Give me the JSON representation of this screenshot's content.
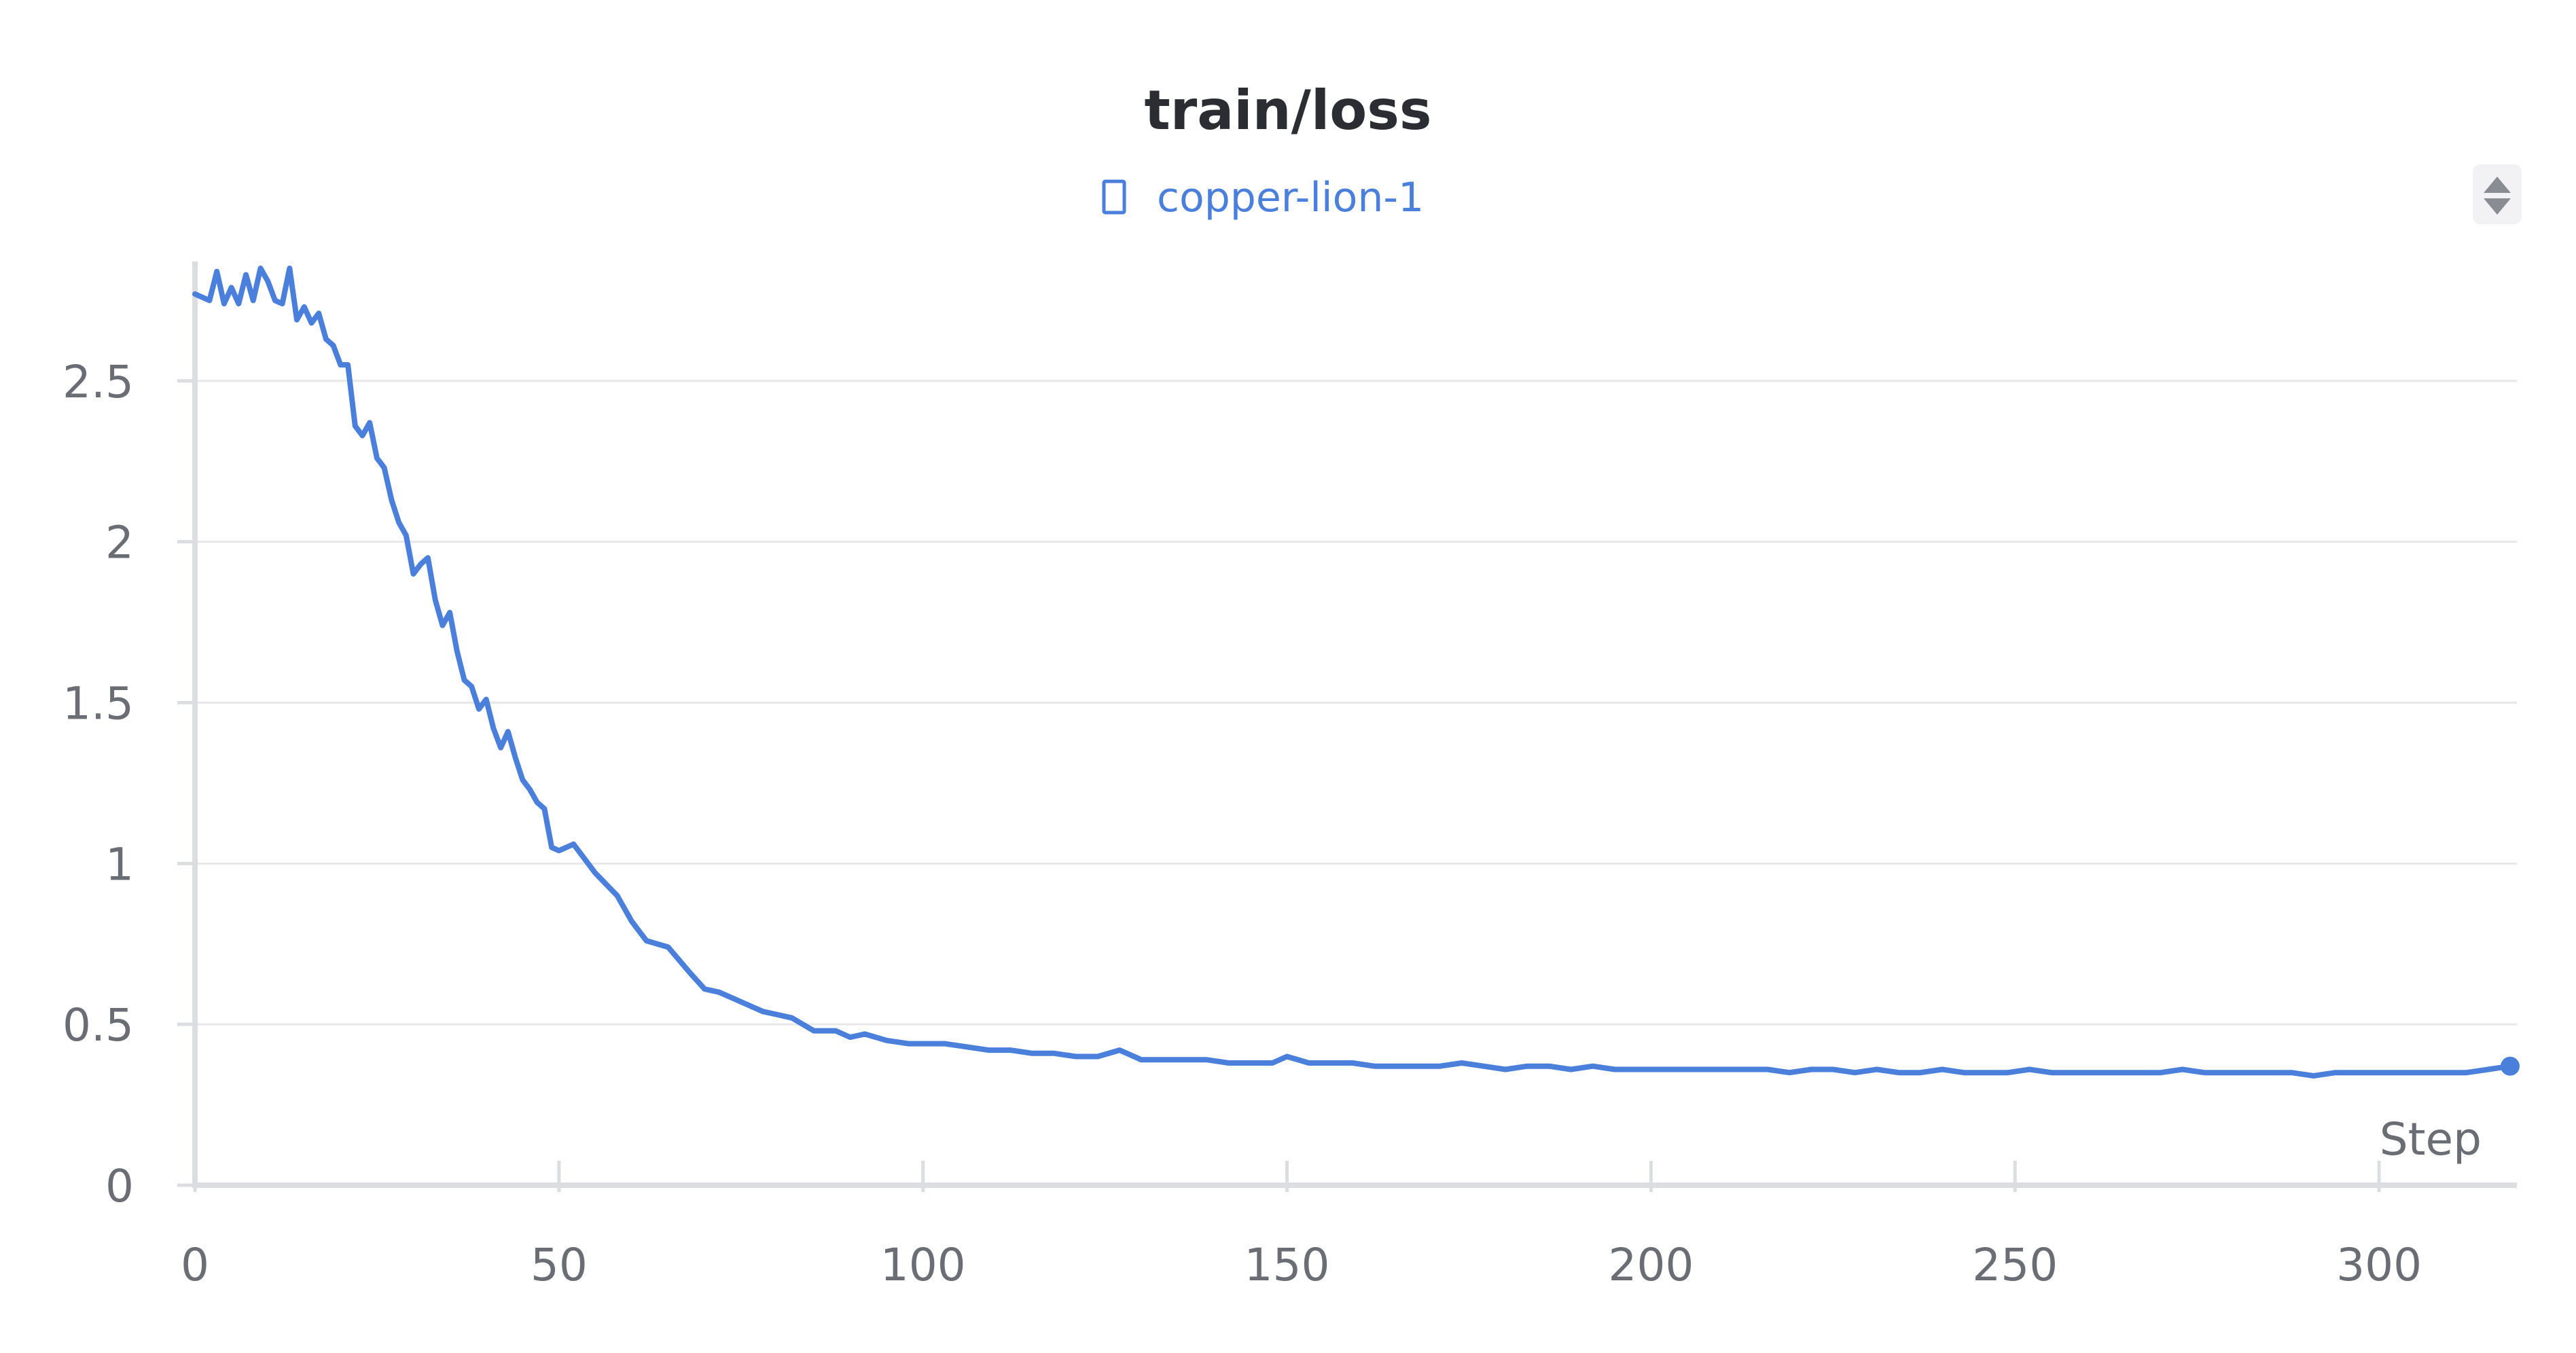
{
  "chart_data": {
    "type": "line",
    "title": "train/loss",
    "xlabel": "Step",
    "ylabel": "",
    "xlim": [
      0,
      318
    ],
    "ylim": [
      0,
      2.85
    ],
    "x_ticks": [
      0,
      50,
      100,
      150,
      200,
      250,
      300
    ],
    "y_ticks": [
      0,
      0.5,
      1,
      1.5,
      2,
      2.5
    ],
    "x_tick_labels": [
      "0",
      "50",
      "100",
      "150",
      "200",
      "250",
      "300"
    ],
    "y_tick_labels": [
      "0",
      "0.5",
      "1",
      "1.5",
      "2",
      "2.5"
    ],
    "grid": true,
    "legend_position": "top-center",
    "series": [
      {
        "name": "copper-lion-1",
        "color": "#4a7fdb",
        "x": [
          0,
          2,
          3,
          4,
          5,
          6,
          7,
          8,
          9,
          10,
          11,
          12,
          13,
          14,
          15,
          16,
          17,
          18,
          19,
          20,
          21,
          22,
          23,
          24,
          25,
          26,
          27,
          28,
          29,
          30,
          31,
          32,
          33,
          34,
          35,
          36,
          37,
          38,
          39,
          40,
          41,
          42,
          43,
          44,
          45,
          46,
          47,
          48,
          49,
          50,
          52,
          55,
          58,
          60,
          62,
          65,
          68,
          70,
          72,
          75,
          78,
          80,
          82,
          85,
          88,
          90,
          92,
          95,
          98,
          100,
          103,
          106,
          109,
          112,
          115,
          118,
          121,
          124,
          127,
          130,
          133,
          136,
          139,
          142,
          145,
          148,
          150,
          153,
          156,
          159,
          162,
          165,
          168,
          171,
          174,
          177,
          180,
          183,
          186,
          189,
          192,
          195,
          198,
          201,
          204,
          207,
          210,
          213,
          216,
          219,
          222,
          225,
          228,
          231,
          234,
          237,
          240,
          243,
          246,
          249,
          252,
          255,
          258,
          261,
          264,
          267,
          270,
          273,
          276,
          279,
          282,
          285,
          288,
          291,
          294,
          297,
          300,
          303,
          306,
          309,
          312,
          315,
          318
        ],
        "y": [
          2.77,
          2.75,
          2.84,
          2.74,
          2.79,
          2.74,
          2.83,
          2.75,
          2.85,
          2.81,
          2.75,
          2.74,
          2.85,
          2.69,
          2.73,
          2.68,
          2.71,
          2.63,
          2.61,
          2.55,
          2.55,
          2.36,
          2.33,
          2.37,
          2.26,
          2.23,
          2.13,
          2.06,
          2.02,
          1.9,
          1.93,
          1.95,
          1.82,
          1.74,
          1.78,
          1.66,
          1.57,
          1.55,
          1.48,
          1.51,
          1.42,
          1.36,
          1.41,
          1.33,
          1.26,
          1.23,
          1.19,
          1.17,
          1.05,
          1.04,
          1.06,
          0.97,
          0.9,
          0.82,
          0.76,
          0.74,
          0.66,
          0.61,
          0.6,
          0.57,
          0.54,
          0.53,
          0.52,
          0.48,
          0.48,
          0.46,
          0.47,
          0.45,
          0.44,
          0.44,
          0.44,
          0.43,
          0.42,
          0.42,
          0.41,
          0.41,
          0.4,
          0.4,
          0.42,
          0.39,
          0.39,
          0.39,
          0.39,
          0.38,
          0.38,
          0.38,
          0.4,
          0.38,
          0.38,
          0.38,
          0.37,
          0.37,
          0.37,
          0.37,
          0.38,
          0.37,
          0.36,
          0.37,
          0.37,
          0.36,
          0.37,
          0.36,
          0.36,
          0.36,
          0.36,
          0.36,
          0.36,
          0.36,
          0.36,
          0.35,
          0.36,
          0.36,
          0.35,
          0.36,
          0.35,
          0.35,
          0.36,
          0.35,
          0.35,
          0.35,
          0.36,
          0.35,
          0.35,
          0.35,
          0.35,
          0.35,
          0.35,
          0.36,
          0.35,
          0.35,
          0.35,
          0.35,
          0.35,
          0.34,
          0.35,
          0.35,
          0.35,
          0.35,
          0.35,
          0.35,
          0.35,
          0.36,
          0.37
        ]
      }
    ]
  },
  "legend": {
    "icon": "square-outline-icon",
    "label": "copper-lion-1"
  },
  "controls": {
    "sort_icon": "sort-updown-icon"
  }
}
